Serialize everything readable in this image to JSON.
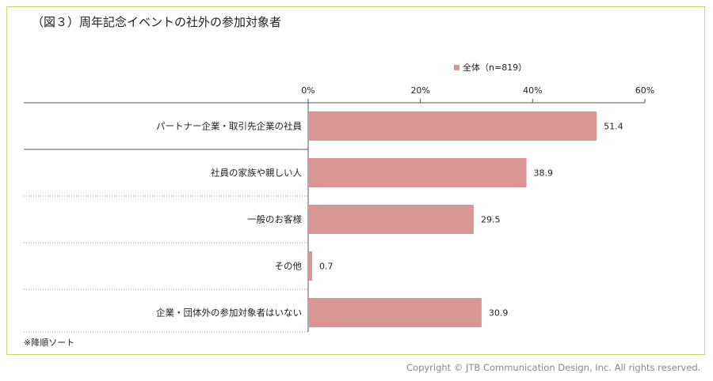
{
  "title": "（図３）周年記念イベントの社外の参加対象者",
  "note": "※降順ソート",
  "copyright": "Copyright © JTB Communication Design, Inc. All rights reserved.",
  "colors": {
    "bar": "#d99694",
    "frame": "#c8d86a",
    "grid": "#999999"
  },
  "chart_data": {
    "type": "bar",
    "orientation": "horizontal",
    "categories": [
      "パートナー企業・取引先企業の社員",
      "社員の家族や親しい人",
      "一般のお客様",
      "その他",
      "企業・団体外の参加対象者はいない"
    ],
    "series": [
      {
        "name": "全体（n=819）",
        "values": [
          51.4,
          38.9,
          29.5,
          0.7,
          30.9
        ]
      }
    ],
    "value_labels": [
      "51.4",
      "38.9",
      "29.5",
      "0.7",
      "30.9"
    ],
    "xlim": [
      0,
      60
    ],
    "xticks": [
      0,
      20,
      40,
      60
    ],
    "xtick_labels": [
      "0%",
      "20%",
      "40%",
      "60%"
    ],
    "xlabel": "",
    "ylabel": "",
    "legend_position": "top-right",
    "grid": false
  }
}
